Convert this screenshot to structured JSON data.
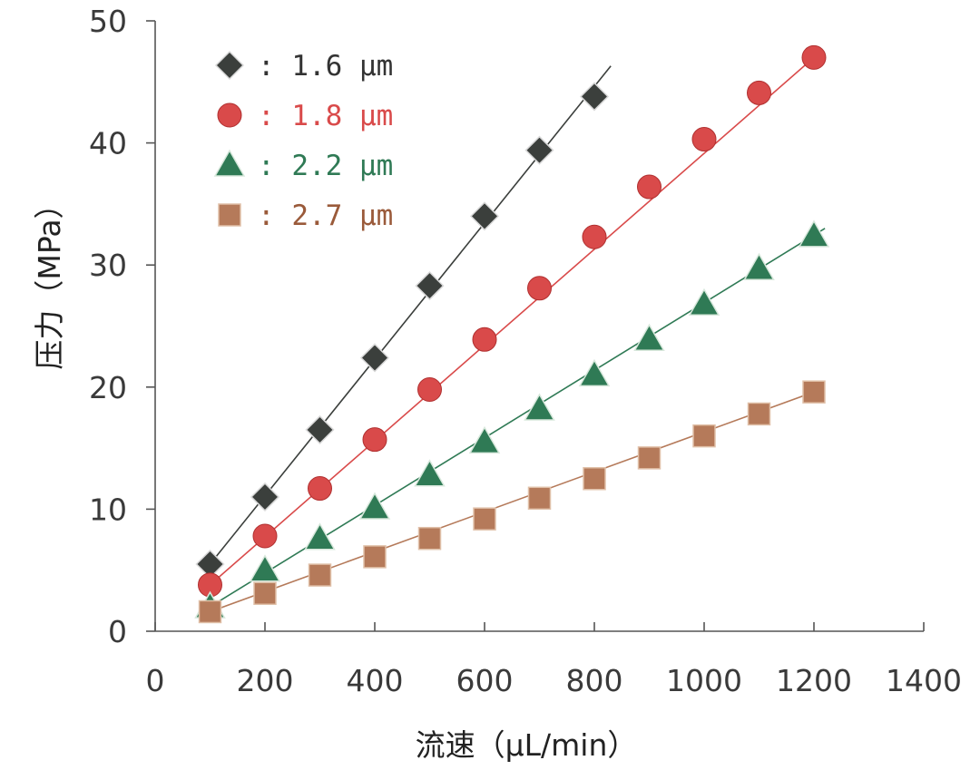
{
  "chart_data": {
    "type": "scatter",
    "xlabel": "流速（µL/min）",
    "ylabel": "压力（MPa）",
    "xlim": [
      0,
      1400
    ],
    "ylim": [
      0,
      50
    ],
    "x_ticks": [
      "0",
      "200",
      "400",
      "600",
      "800",
      "1000",
      "1200",
      "1400"
    ],
    "y_ticks": [
      "0",
      "10",
      "20",
      "30",
      "40",
      "50"
    ],
    "legend_position": "top-left",
    "grid": false,
    "series": [
      {
        "name": ": 1.6 µm",
        "marker": "diamond",
        "color": "#3b3f3c",
        "text_color": "#333333",
        "x": [
          100,
          200,
          300,
          400,
          500,
          600,
          700,
          800
        ],
        "y": [
          5.5,
          11.0,
          16.5,
          22.4,
          28.3,
          34.0,
          39.4,
          43.8
        ],
        "fit": {
          "x": [
            100,
            830
          ],
          "y": [
            5.5,
            46.3
          ]
        }
      },
      {
        "name": ": 1.8 µm",
        "marker": "circle",
        "color": "#d94a4a",
        "text_color": "#d94a4a",
        "x": [
          100,
          200,
          300,
          400,
          500,
          600,
          700,
          800,
          900,
          1000,
          1100,
          1200
        ],
        "y": [
          3.8,
          7.8,
          11.7,
          15.7,
          19.8,
          23.9,
          28.1,
          32.3,
          36.4,
          40.3,
          44.1,
          47.0
        ],
        "fit": {
          "x": [
            100,
            1200
          ],
          "y": [
            3.8,
            47.0
          ]
        }
      },
      {
        "name": ": 2.2 µm",
        "marker": "triangle",
        "color": "#2f7a55",
        "text_color": "#2f7a55",
        "x": [
          100,
          200,
          300,
          400,
          500,
          600,
          700,
          800,
          900,
          1000,
          1100,
          1200
        ],
        "y": [
          2.0,
          5.0,
          7.6,
          10.1,
          12.8,
          15.5,
          18.2,
          21.0,
          23.9,
          26.8,
          29.7,
          32.4
        ],
        "fit": {
          "x": [
            100,
            1220
          ],
          "y": [
            2.0,
            33.0
          ]
        }
      },
      {
        "name": ": 2.7 µm",
        "marker": "square",
        "color": "#b57a5a",
        "text_color": "#9a5a3a",
        "x": [
          100,
          200,
          300,
          400,
          500,
          600,
          700,
          800,
          900,
          1000,
          1100,
          1200
        ],
        "y": [
          1.6,
          3.1,
          4.6,
          6.1,
          7.6,
          9.2,
          10.9,
          12.5,
          14.2,
          16.0,
          17.8,
          19.6
        ],
        "fit": {
          "x": [
            100,
            1200
          ],
          "y": [
            1.6,
            19.6
          ]
        }
      }
    ]
  }
}
